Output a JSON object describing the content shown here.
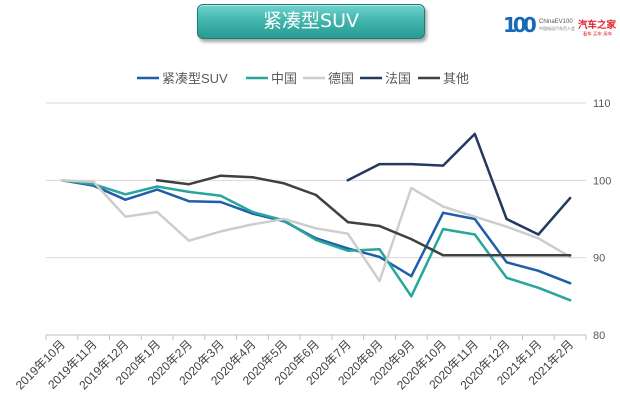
{
  "logos": {
    "ev100_mark": "100",
    "ev100_name": "ChinaEV100",
    "ev100_sub": "中国电动汽车百人会",
    "autohome_name": "汽车之家",
    "autohome_sub": "看车 买车 用车"
  },
  "chart_data": {
    "type": "line",
    "title": "紧凑型SUV",
    "xlabel": "",
    "ylabel": "",
    "ylim": [
      80,
      110
    ],
    "yticks": [
      80,
      90,
      100,
      110
    ],
    "grid": true,
    "legend_position": "top",
    "categories": [
      "2019年10月",
      "2019年11月",
      "2019年12月",
      "2020年1月",
      "2020年2月",
      "2020年3月",
      "2020年4月",
      "2020年5月",
      "2020年6月",
      "2020年7月",
      "2020年8月",
      "2020年9月",
      "2020年10月",
      "2020年11月",
      "2020年12月",
      "2021年1月",
      "2021年2月"
    ],
    "series": [
      {
        "name": "紧凑型SUV",
        "color": "#1f5ea8",
        "values": [
          100,
          99.3,
          97.5,
          98.8,
          97.3,
          97.2,
          95.7,
          94.7,
          92.5,
          91.2,
          90.1,
          87.6,
          95.8,
          95.0,
          89.4,
          88.3,
          86.7
        ]
      },
      {
        "name": "中国",
        "color": "#27a69b",
        "values": [
          100,
          99.5,
          98.2,
          99.2,
          98.5,
          98.0,
          95.9,
          94.8,
          92.3,
          90.9,
          91.1,
          85.0,
          93.7,
          93.0,
          87.4,
          86.1,
          84.5
        ]
      },
      {
        "name": "德国",
        "color": "#cdcdcd",
        "values": [
          100,
          99.8,
          95.3,
          95.9,
          92.2,
          93.4,
          94.3,
          95.0,
          93.8,
          93.1,
          87.0,
          99.0,
          96.6,
          95.3,
          94.0,
          92.5,
          90.1
        ]
      },
      {
        "name": "法国",
        "color": "#233a5e",
        "values": [
          null,
          null,
          null,
          null,
          null,
          null,
          null,
          null,
          null,
          100.0,
          102.1,
          102.1,
          101.9,
          106.0,
          95.0,
          93.0,
          97.7
        ]
      },
      {
        "name": "其他",
        "color": "#404040",
        "values": [
          null,
          null,
          null,
          100.0,
          99.5,
          100.6,
          100.4,
          99.6,
          98.1,
          94.6,
          94.1,
          92.4,
          90.3,
          90.3,
          90.3,
          90.3,
          90.3
        ]
      }
    ]
  }
}
